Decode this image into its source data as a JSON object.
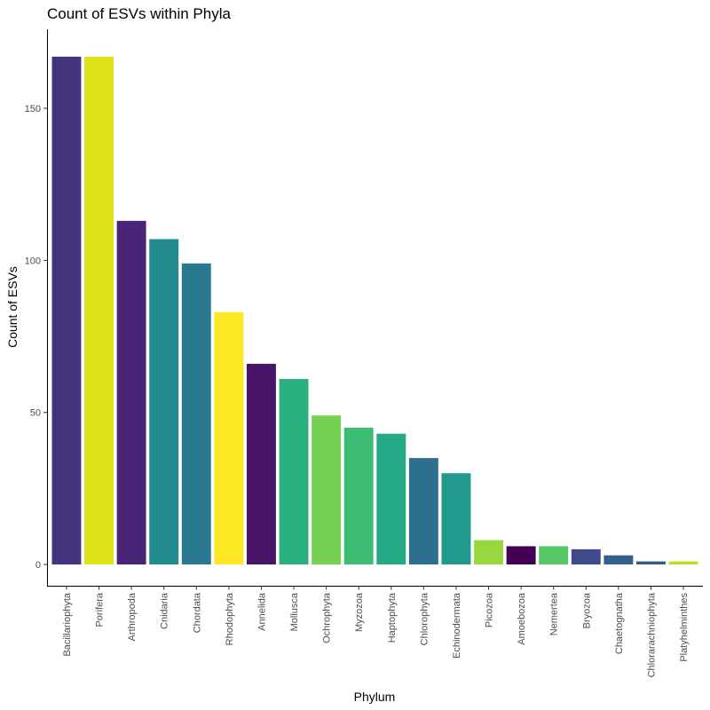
{
  "chart_data": {
    "type": "bar",
    "title": "Count of ESVs within Phyla",
    "xlabel": "Phylum",
    "ylabel": "Count of ESVs",
    "ylim": [
      -7,
      176
    ],
    "yticks": [
      0,
      50,
      100,
      150
    ],
    "grid": false,
    "legend": "none",
    "categories": [
      "Bacillariophyta",
      "Porifera",
      "Arthropoda",
      "Cnidaria",
      "Chordata",
      "Rhodophyta",
      "Annelida",
      "Mollusca",
      "Ochrophyta",
      "Myzozoa",
      "Haptophyta",
      "Chlorophyta",
      "Echinodermata",
      "Picozoa",
      "Amoebozoa",
      "Nemertea",
      "Bryozoa",
      "Chaetognatha",
      "Chlorarachniophyta",
      "Platyhelminthes"
    ],
    "values": [
      167,
      167,
      113,
      107,
      99,
      83,
      66,
      61,
      49,
      45,
      43,
      35,
      30,
      8,
      6,
      6,
      5,
      3,
      1,
      1
    ],
    "colors": [
      "#46337E",
      "#DDE318",
      "#482576",
      "#228B8D",
      "#28788E",
      "#FDE725",
      "#481467",
      "#2AB07F",
      "#75D054",
      "#3DBC74",
      "#25A984",
      "#2E6E8E",
      "#21998C",
      "#98D83E",
      "#440154",
      "#56C667",
      "#3E4A89",
      "#355F8D",
      "#38598C",
      "#BBDF27"
    ]
  }
}
